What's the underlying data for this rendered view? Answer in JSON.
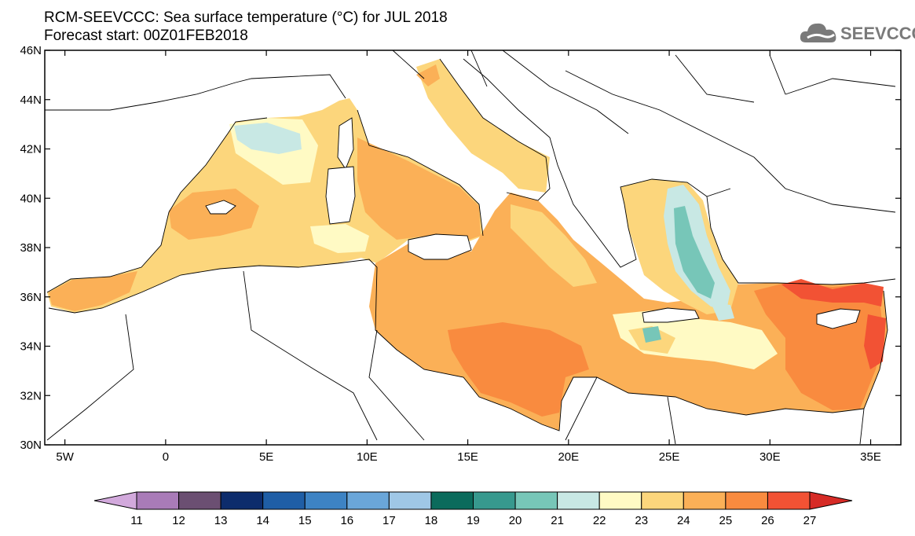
{
  "header": {
    "title_line1": "RCM-SEEVCCC: Sea surface temperature (°C) for JUL 2018",
    "title_line2": "Forecast start: 00Z01FEB2018",
    "logo_text": "SEEVCCC"
  },
  "map": {
    "lon_labels": [
      "5W",
      "0",
      "5E",
      "10E",
      "15E",
      "20E",
      "25E",
      "30E",
      "35E"
    ],
    "lat_labels": [
      "46N",
      "44N",
      "42N",
      "40N",
      "38N",
      "36N",
      "34N",
      "32N",
      "30N"
    ],
    "lon_range": [
      -6,
      36.5
    ],
    "lat_range": [
      30,
      46
    ]
  },
  "colorbar": {
    "labels": [
      "11",
      "12",
      "13",
      "14",
      "15",
      "16",
      "17",
      "18",
      "19",
      "20",
      "21",
      "22",
      "23",
      "24",
      "25",
      "26",
      "27"
    ],
    "colors": [
      "#d2a9dc",
      "#a97bb8",
      "#6b4f72",
      "#0d2c6c",
      "#1f5ea6",
      "#3d83c4",
      "#6aa6d9",
      "#9fc7e6",
      "#0b6b5c",
      "#37998e",
      "#77c6b8",
      "#c8e8e4",
      "#fffac4",
      "#fcd67c",
      "#fbb057",
      "#f98b3f",
      "#f25234",
      "#d62b26"
    ]
  },
  "regions": {
    "colors": {
      "c21": "#c8e8e4",
      "c20": "#77c6b8",
      "c22": "#fffac4",
      "c23": "#fcd67c",
      "c24": "#fbb057",
      "c25": "#f98b3f",
      "c26": "#f25234"
    }
  }
}
